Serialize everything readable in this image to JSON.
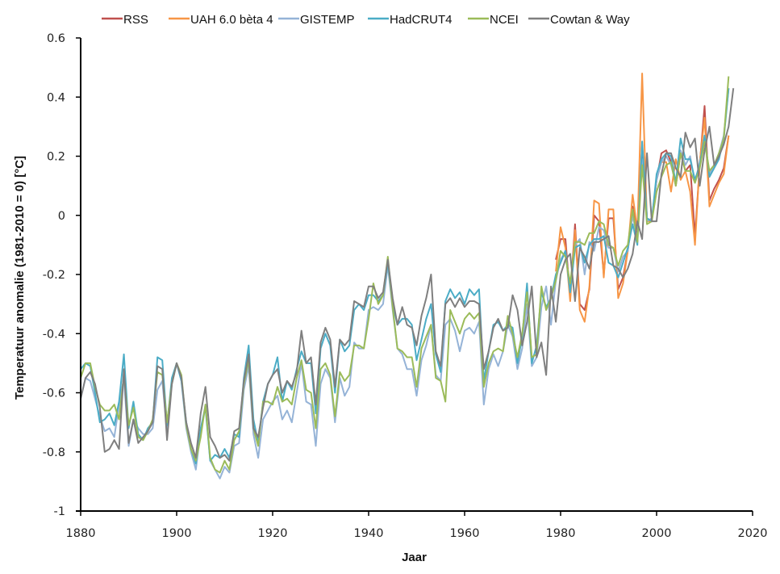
{
  "chart_data": {
    "type": "line",
    "title": "",
    "xlabel": "Jaar",
    "ylabel": "Temperatuur  anomalie  (1981-2010 = 0) [°C]",
    "xlim": [
      1880,
      2020
    ],
    "ylim": [
      -1,
      0.6
    ],
    "xticks": [
      1880,
      1900,
      1920,
      1940,
      1960,
      1980,
      2000,
      2020
    ],
    "yticks": [
      -1,
      -0.8,
      -0.6,
      -0.4,
      -0.2,
      0,
      0.2,
      0.4,
      0.6
    ],
    "ytick_labels": [
      "-1",
      "-0.8",
      "-0.6",
      "-0.4",
      "-0.2",
      "0",
      "0.2",
      "0.4",
      "0.6"
    ],
    "grid": false,
    "legend_position": "top",
    "series": [
      {
        "name": "RSS",
        "color": "#C0504D",
        "x_start": 1979,
        "values": [
          -0.15,
          -0.08,
          -0.08,
          -0.28,
          -0.03,
          -0.3,
          -0.32,
          -0.25,
          0.0,
          -0.02,
          -0.2,
          -0.01,
          -0.01,
          -0.25,
          -0.21,
          -0.12,
          0.03,
          -0.07,
          0.24,
          -0.01,
          -0.02,
          0.12,
          0.21,
          0.22,
          0.18,
          0.1,
          0.21,
          0.15,
          0.17,
          -0.07,
          0.17,
          0.37,
          0.05,
          0.09,
          0.12,
          0.16,
          0.27
        ]
      },
      {
        "name": "UAH 6.0 bèta 4",
        "color": "#F79646",
        "x_start": 1979,
        "values": [
          -0.19,
          -0.04,
          -0.11,
          -0.29,
          -0.05,
          -0.32,
          -0.36,
          -0.24,
          0.05,
          0.04,
          -0.21,
          0.02,
          0.02,
          -0.28,
          -0.23,
          -0.12,
          0.07,
          -0.05,
          0.48,
          -0.02,
          -0.02,
          0.12,
          0.18,
          0.18,
          0.08,
          0.19,
          0.12,
          0.15,
          0.08,
          -0.1,
          0.18,
          0.33,
          0.03,
          0.07,
          0.11,
          0.14,
          0.27
        ]
      },
      {
        "name": "GISTEMP",
        "color": "#95B3D7",
        "x_start": 1880,
        "values": [
          -0.62,
          -0.55,
          -0.56,
          -0.62,
          -0.68,
          -0.73,
          -0.72,
          -0.75,
          -0.64,
          -0.55,
          -0.78,
          -0.69,
          -0.72,
          -0.74,
          -0.74,
          -0.72,
          -0.59,
          -0.56,
          -0.73,
          -0.56,
          -0.5,
          -0.56,
          -0.72,
          -0.8,
          -0.86,
          -0.73,
          -0.64,
          -0.83,
          -0.86,
          -0.89,
          -0.85,
          -0.87,
          -0.78,
          -0.77,
          -0.59,
          -0.51,
          -0.74,
          -0.82,
          -0.69,
          -0.66,
          -0.63,
          -0.61,
          -0.69,
          -0.66,
          -0.7,
          -0.6,
          -0.5,
          -0.63,
          -0.64,
          -0.78,
          -0.57,
          -0.52,
          -0.55,
          -0.7,
          -0.55,
          -0.61,
          -0.58,
          -0.43,
          -0.45,
          -0.45,
          -0.32,
          -0.31,
          -0.32,
          -0.3,
          -0.17,
          -0.32,
          -0.45,
          -0.47,
          -0.52,
          -0.52,
          -0.61,
          -0.49,
          -0.44,
          -0.37,
          -0.54,
          -0.56,
          -0.37,
          -0.35,
          -0.39,
          -0.46,
          -0.39,
          -0.38,
          -0.4,
          -0.36,
          -0.64,
          -0.52,
          -0.47,
          -0.51,
          -0.46,
          -0.37,
          -0.41,
          -0.52,
          -0.45,
          -0.3,
          -0.51,
          -0.48,
          -0.31,
          -0.24,
          -0.37,
          -0.22,
          -0.15,
          -0.12,
          -0.26,
          -0.1,
          -0.08,
          -0.2,
          -0.09,
          -0.12,
          -0.04,
          -0.05,
          -0.11,
          -0.11,
          -0.19,
          -0.14,
          -0.12,
          0.0,
          -0.08,
          0.19,
          -0.02,
          -0.01,
          0.12,
          0.18,
          0.2,
          0.17,
          0.11,
          0.22,
          0.17,
          0.2,
          0.11,
          0.18,
          0.25,
          0.14,
          0.17,
          0.21,
          0.27,
          0.43
        ]
      },
      {
        "name": "HadCRUT4",
        "color": "#4BACC6",
        "x_start": 1880,
        "values": [
          -0.52,
          -0.5,
          -0.51,
          -0.6,
          -0.7,
          -0.69,
          -0.67,
          -0.71,
          -0.63,
          -0.47,
          -0.72,
          -0.63,
          -0.74,
          -0.76,
          -0.72,
          -0.7,
          -0.48,
          -0.49,
          -0.71,
          -0.55,
          -0.5,
          -0.56,
          -0.7,
          -0.79,
          -0.84,
          -0.72,
          -0.65,
          -0.83,
          -0.81,
          -0.82,
          -0.79,
          -0.82,
          -0.74,
          -0.75,
          -0.55,
          -0.44,
          -0.69,
          -0.77,
          -0.63,
          -0.57,
          -0.54,
          -0.48,
          -0.63,
          -0.56,
          -0.59,
          -0.52,
          -0.46,
          -0.5,
          -0.5,
          -0.67,
          -0.45,
          -0.4,
          -0.44,
          -0.6,
          -0.42,
          -0.46,
          -0.44,
          -0.32,
          -0.3,
          -0.32,
          -0.27,
          -0.27,
          -0.29,
          -0.27,
          -0.16,
          -0.3,
          -0.37,
          -0.35,
          -0.35,
          -0.37,
          -0.49,
          -0.42,
          -0.35,
          -0.3,
          -0.47,
          -0.53,
          -0.29,
          -0.25,
          -0.28,
          -0.26,
          -0.3,
          -0.25,
          -0.27,
          -0.25,
          -0.56,
          -0.46,
          -0.37,
          -0.36,
          -0.39,
          -0.37,
          -0.38,
          -0.5,
          -0.41,
          -0.23,
          -0.5,
          -0.44,
          -0.26,
          -0.31,
          -0.28,
          -0.2,
          -0.16,
          -0.12,
          -0.26,
          -0.11,
          -0.1,
          -0.16,
          -0.1,
          -0.08,
          -0.08,
          -0.07,
          -0.16,
          -0.17,
          -0.21,
          -0.16,
          -0.11,
          -0.03,
          -0.1,
          0.25,
          -0.01,
          -0.02,
          0.14,
          0.19,
          0.21,
          0.2,
          0.11,
          0.26,
          0.19,
          0.19,
          0.12,
          0.17,
          0.27,
          0.13,
          0.16,
          0.19,
          0.26,
          0.43
        ]
      },
      {
        "name": "NCEI",
        "color": "#9BBB59",
        "x_start": 1880,
        "values": [
          -0.55,
          -0.5,
          -0.5,
          -0.58,
          -0.64,
          -0.66,
          -0.66,
          -0.64,
          -0.69,
          -0.54,
          -0.71,
          -0.65,
          -0.75,
          -0.76,
          -0.73,
          -0.69,
          -0.53,
          -0.54,
          -0.7,
          -0.57,
          -0.5,
          -0.54,
          -0.71,
          -0.79,
          -0.83,
          -0.75,
          -0.64,
          -0.82,
          -0.86,
          -0.87,
          -0.83,
          -0.86,
          -0.76,
          -0.73,
          -0.57,
          -0.49,
          -0.72,
          -0.78,
          -0.63,
          -0.63,
          -0.64,
          -0.58,
          -0.63,
          -0.62,
          -0.64,
          -0.55,
          -0.49,
          -0.59,
          -0.6,
          -0.72,
          -0.52,
          -0.5,
          -0.54,
          -0.68,
          -0.53,
          -0.56,
          -0.54,
          -0.44,
          -0.44,
          -0.45,
          -0.35,
          -0.23,
          -0.3,
          -0.27,
          -0.14,
          -0.31,
          -0.45,
          -0.46,
          -0.48,
          -0.48,
          -0.58,
          -0.45,
          -0.41,
          -0.37,
          -0.55,
          -0.56,
          -0.63,
          -0.32,
          -0.36,
          -0.4,
          -0.35,
          -0.33,
          -0.35,
          -0.33,
          -0.58,
          -0.5,
          -0.46,
          -0.45,
          -0.46,
          -0.34,
          -0.4,
          -0.48,
          -0.4,
          -0.26,
          -0.48,
          -0.47,
          -0.24,
          -0.32,
          -0.28,
          -0.22,
          -0.12,
          -0.14,
          -0.23,
          -0.09,
          -0.09,
          -0.1,
          -0.06,
          -0.06,
          -0.02,
          -0.03,
          -0.1,
          -0.11,
          -0.17,
          -0.12,
          -0.1,
          0.02,
          -0.09,
          0.17,
          -0.03,
          -0.02,
          0.08,
          0.13,
          0.17,
          0.18,
          0.1,
          0.21,
          0.15,
          0.15,
          0.11,
          0.16,
          0.25,
          0.15,
          0.17,
          0.21,
          0.26,
          0.47
        ]
      },
      {
        "name": "Cowtan & Way",
        "color": "#7F7F7F",
        "x_start": 1880,
        "values": [
          -0.62,
          -0.55,
          -0.53,
          -0.57,
          -0.65,
          -0.8,
          -0.79,
          -0.76,
          -0.79,
          -0.52,
          -0.77,
          -0.69,
          -0.77,
          -0.75,
          -0.73,
          -0.7,
          -0.51,
          -0.52,
          -0.76,
          -0.57,
          -0.5,
          -0.55,
          -0.7,
          -0.77,
          -0.82,
          -0.67,
          -0.58,
          -0.75,
          -0.78,
          -0.82,
          -0.81,
          -0.83,
          -0.73,
          -0.72,
          -0.56,
          -0.47,
          -0.72,
          -0.75,
          -0.65,
          -0.57,
          -0.54,
          -0.52,
          -0.6,
          -0.56,
          -0.58,
          -0.53,
          -0.39,
          -0.5,
          -0.48,
          -0.64,
          -0.43,
          -0.38,
          -0.42,
          -0.58,
          -0.42,
          -0.44,
          -0.42,
          -0.29,
          -0.3,
          -0.31,
          -0.24,
          -0.24,
          -0.28,
          -0.26,
          -0.15,
          -0.28,
          -0.37,
          -0.31,
          -0.37,
          -0.38,
          -0.44,
          -0.34,
          -0.28,
          -0.2,
          -0.46,
          -0.51,
          -0.3,
          -0.28,
          -0.31,
          -0.28,
          -0.31,
          -0.29,
          -0.29,
          -0.3,
          -0.52,
          -0.46,
          -0.38,
          -0.35,
          -0.39,
          -0.38,
          -0.27,
          -0.32,
          -0.44,
          -0.36,
          -0.24,
          -0.48,
          -0.43,
          -0.54,
          -0.24,
          -0.36,
          -0.2,
          -0.15,
          -0.13,
          -0.29,
          -0.11,
          -0.14,
          -0.18,
          -0.09,
          -0.09,
          -0.08,
          -0.07,
          -0.17,
          -0.18,
          -0.21,
          -0.18,
          -0.13,
          -0.02,
          -0.08,
          0.21,
          -0.02,
          -0.02,
          0.14,
          0.21,
          0.21,
          0.16,
          0.13,
          0.28,
          0.23,
          0.26,
          0.1,
          0.22,
          0.3,
          0.17,
          0.2,
          0.24,
          0.3,
          0.43
        ]
      }
    ]
  }
}
